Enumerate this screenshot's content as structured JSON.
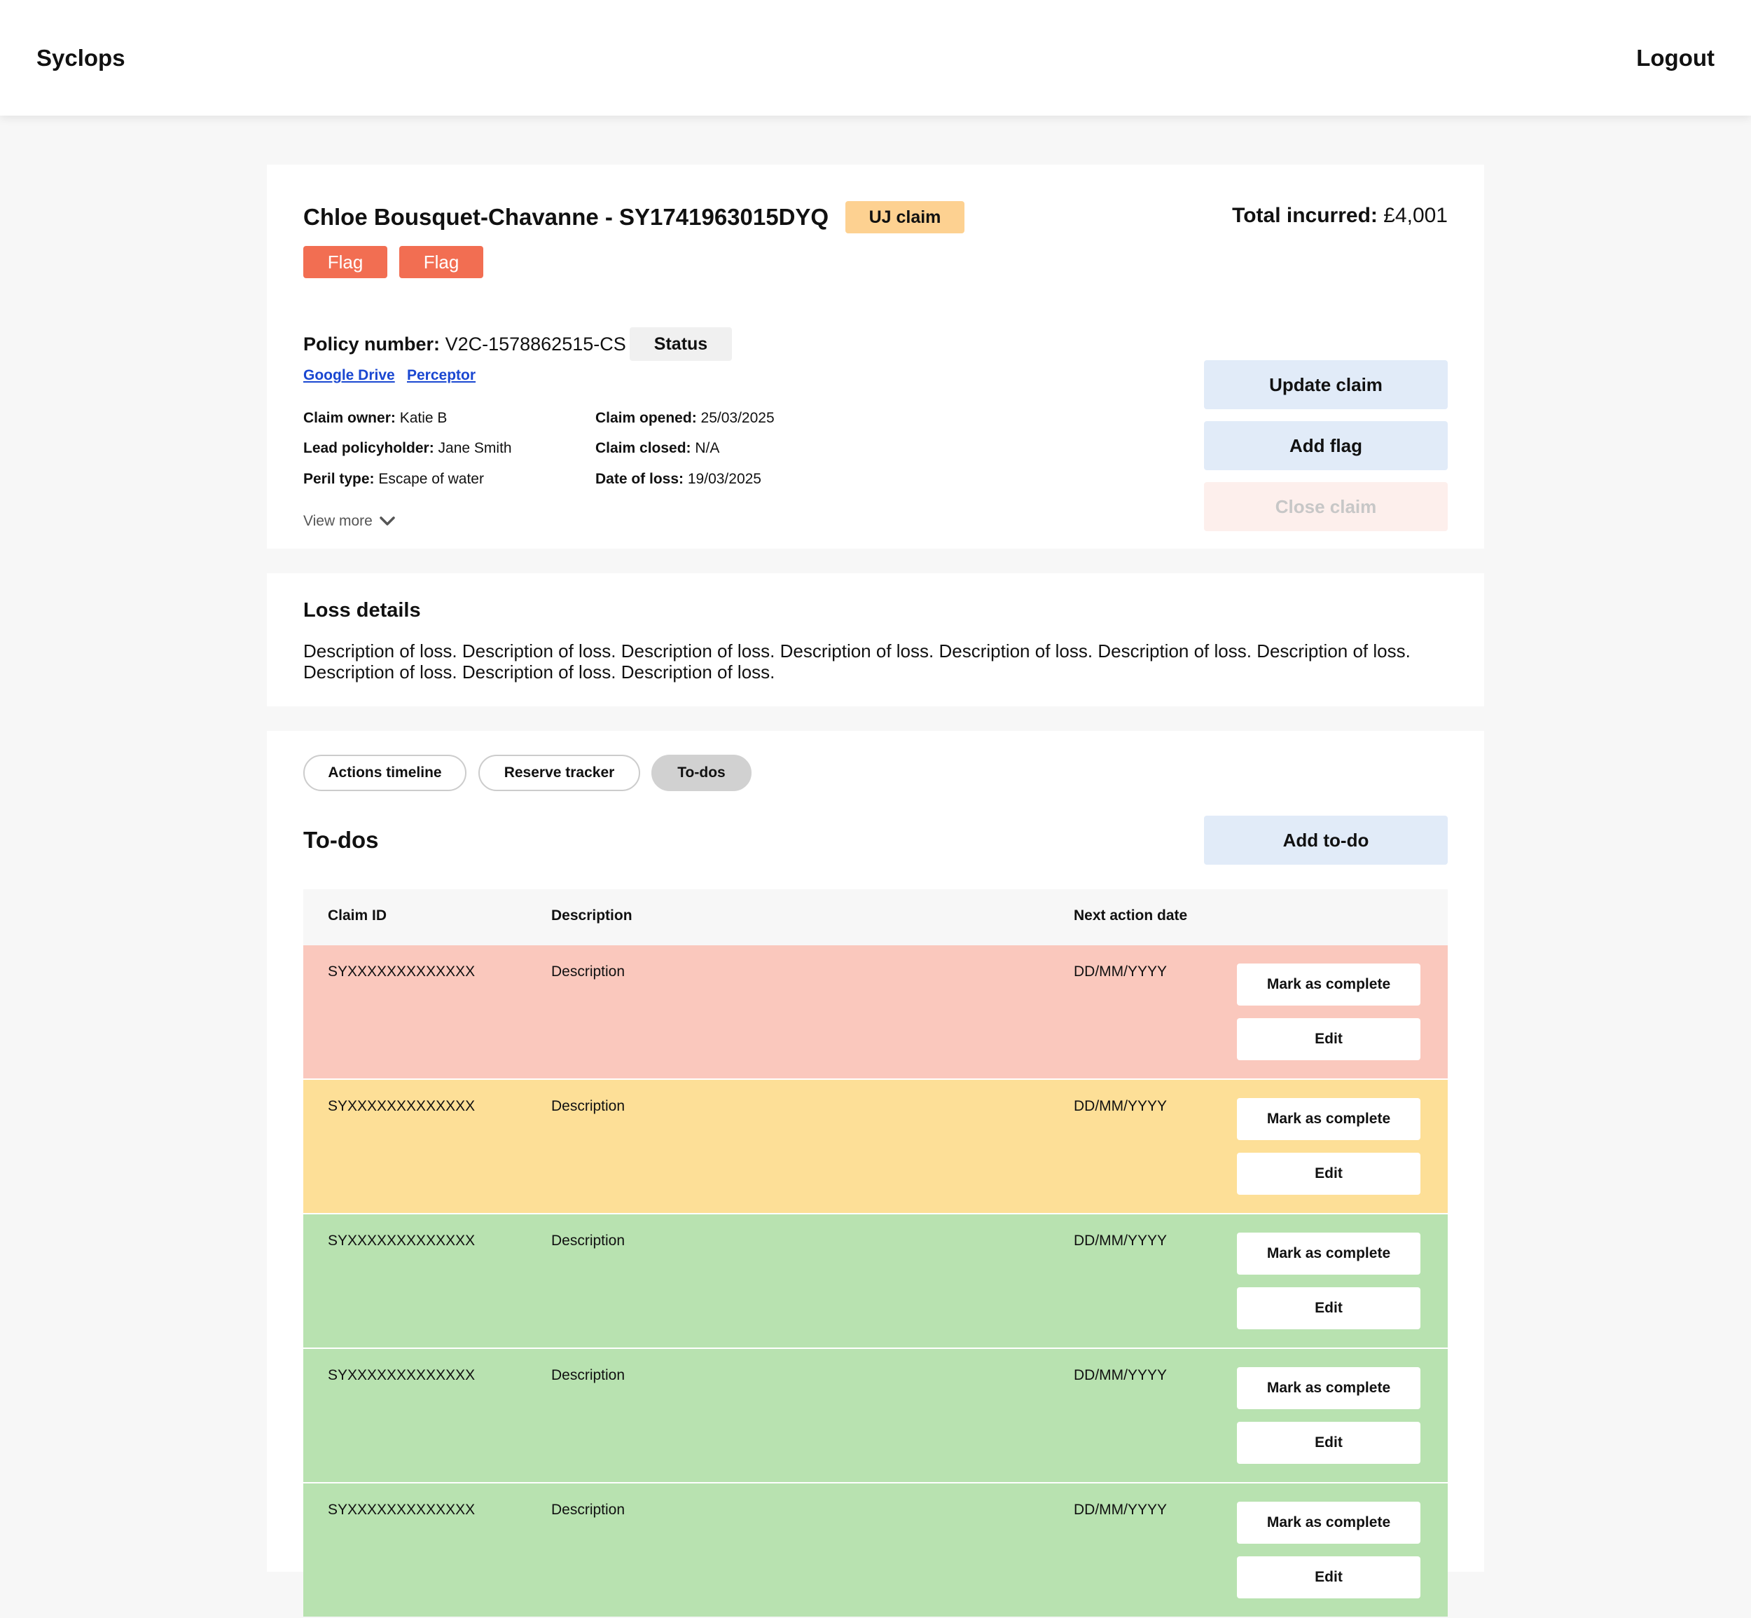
{
  "header": {
    "brand": "Syclops",
    "logout": "Logout"
  },
  "claim": {
    "title": "Chloe Bousquet-Chavanne - SY1741963015DYQ",
    "badge": "UJ claim",
    "flags": [
      "Flag",
      "Flag"
    ],
    "total_label": "Total incurred:",
    "total_value": "£4,001",
    "policy_label": "Policy number:",
    "policy_value": "V2C-1578862515-CS",
    "status": "Status",
    "links": [
      "Google Drive",
      "Perceptor"
    ],
    "details": {
      "owner_label": "Claim owner:",
      "owner": "Katie B",
      "lead_label": "Lead policyholder:",
      "lead": "Jane Smith",
      "peril_label": "Peril type:",
      "peril": "Escape of water",
      "opened_label": "Claim opened:",
      "opened": "25/03/2025",
      "closed_label": "Claim closed:",
      "closed": "N/A",
      "dol_label": "Date of loss:",
      "dol": "19/03/2025"
    },
    "view_more": "View more",
    "actions": {
      "update": "Update claim",
      "add_flag": "Add flag",
      "close": "Close claim"
    }
  },
  "loss": {
    "title": "Loss details",
    "description": "Description of loss. Description of loss. Description of loss. Description of loss. Description of loss. Description of loss. Description of loss. Description of loss. Description of loss. Description of loss."
  },
  "tabs": [
    "Actions timeline",
    "Reserve tracker",
    "To-dos"
  ],
  "todos": {
    "title": "To-dos",
    "add_button": "Add to-do",
    "columns": {
      "id": "Claim ID",
      "description": "Description",
      "date": "Next action date"
    },
    "mark_complete": "Mark as complete",
    "edit": "Edit",
    "rows": [
      {
        "id": "SYXXXXXXXXXXXXX",
        "description": "Description",
        "date": "DD/MM/YYYY",
        "status_color": "#fac8bd"
      },
      {
        "id": "SYXXXXXXXXXXXXX",
        "description": "Description",
        "date": "DD/MM/YYYY",
        "status_color": "#fddf97"
      },
      {
        "id": "SYXXXXXXXXXXXXX",
        "description": "Description",
        "date": "DD/MM/YYYY",
        "status_color": "#b8e2b0"
      },
      {
        "id": "SYXXXXXXXXXXXXX",
        "description": "Description",
        "date": "DD/MM/YYYY",
        "status_color": "#b8e2b0"
      },
      {
        "id": "SYXXXXXXXXXXXXX",
        "description": "Description",
        "date": "DD/MM/YYYY",
        "status_color": "#b8e2b0"
      }
    ]
  },
  "colors": {
    "flag": "#f26e52",
    "badge": "#fdd191",
    "button": "#e1ebf8",
    "button_disabled": "#fdefec",
    "link": "#1a47d1"
  }
}
